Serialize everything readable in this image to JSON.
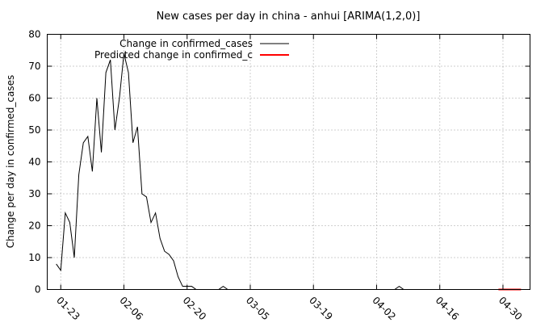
{
  "chart_data": {
    "type": "line",
    "title": "New cases per day in china - anhui [ARIMA(1,2,0)]",
    "xlabel": "",
    "ylabel": "Change per day in confirmed_cases",
    "xlim": [
      "2020-01-20",
      "2020-05-06"
    ],
    "ylim": [
      0,
      80
    ],
    "y_ticks": [
      0,
      10,
      20,
      30,
      40,
      50,
      60,
      70,
      80
    ],
    "x_ticks": [
      {
        "label": "01-23",
        "date": "2020-01-23"
      },
      {
        "label": "02-06",
        "date": "2020-02-06"
      },
      {
        "label": "02-20",
        "date": "2020-02-20"
      },
      {
        "label": "03-05",
        "date": "2020-03-05"
      },
      {
        "label": "03-19",
        "date": "2020-03-19"
      },
      {
        "label": "04-02",
        "date": "2020-04-02"
      },
      {
        "label": "04-16",
        "date": "2020-04-16"
      },
      {
        "label": "04-30",
        "date": "2020-04-30"
      }
    ],
    "grid": true,
    "legend_position": "top-left",
    "series": [
      {
        "name": "Change in confirmed_cases",
        "color": "#000000",
        "x": [
          "2020-01-22",
          "2020-01-23",
          "2020-01-24",
          "2020-01-25",
          "2020-01-26",
          "2020-01-27",
          "2020-01-28",
          "2020-01-29",
          "2020-01-30",
          "2020-01-31",
          "2020-02-01",
          "2020-02-02",
          "2020-02-03",
          "2020-02-04",
          "2020-02-05",
          "2020-02-06",
          "2020-02-07",
          "2020-02-08",
          "2020-02-09",
          "2020-02-10",
          "2020-02-11",
          "2020-02-12",
          "2020-02-13",
          "2020-02-14",
          "2020-02-15",
          "2020-02-16",
          "2020-02-17",
          "2020-02-18",
          "2020-02-19",
          "2020-02-20",
          "2020-02-21",
          "2020-02-22",
          "2020-02-23",
          "2020-02-24",
          "2020-02-25",
          "2020-02-26",
          "2020-02-27",
          "2020-02-28",
          "2020-02-29",
          "2020-03-01",
          "2020-03-02",
          "2020-03-03",
          "2020-03-04",
          "2020-03-05",
          "2020-03-06",
          "2020-03-07",
          "2020-03-08",
          "2020-03-09",
          "2020-03-10",
          "2020-03-11",
          "2020-03-12",
          "2020-03-13",
          "2020-03-14",
          "2020-03-15",
          "2020-03-16",
          "2020-03-17",
          "2020-03-18",
          "2020-03-19",
          "2020-03-20",
          "2020-03-21",
          "2020-03-22",
          "2020-03-23",
          "2020-03-24",
          "2020-03-25",
          "2020-03-26",
          "2020-03-27",
          "2020-03-28",
          "2020-03-29",
          "2020-03-30",
          "2020-03-31",
          "2020-04-01",
          "2020-04-02",
          "2020-04-03",
          "2020-04-04",
          "2020-04-05",
          "2020-04-06",
          "2020-04-07",
          "2020-04-08",
          "2020-04-09",
          "2020-04-10",
          "2020-04-11",
          "2020-04-12",
          "2020-04-13",
          "2020-04-14",
          "2020-04-15",
          "2020-04-16",
          "2020-04-17",
          "2020-04-18",
          "2020-04-19",
          "2020-04-20",
          "2020-04-21",
          "2020-04-22",
          "2020-04-23",
          "2020-04-24",
          "2020-04-25",
          "2020-04-26",
          "2020-04-27",
          "2020-04-28",
          "2020-04-29",
          "2020-04-30",
          "2020-05-01",
          "2020-05-02",
          "2020-05-03",
          "2020-05-04"
        ],
        "y": [
          8,
          6,
          24,
          21,
          10,
          36,
          46,
          48,
          37,
          60,
          43,
          68,
          72,
          50,
          60,
          74,
          68,
          46,
          51,
          30,
          29,
          21,
          24,
          16,
          12,
          11,
          9,
          4,
          1,
          1,
          1,
          0,
          0,
          0,
          0,
          0,
          0,
          1,
          0,
          0,
          0,
          0,
          0,
          0,
          0,
          0,
          0,
          0,
          0,
          0,
          0,
          0,
          0,
          0,
          0,
          0,
          0,
          0,
          0,
          0,
          0,
          0,
          0,
          0,
          0,
          0,
          0,
          0,
          0,
          0,
          0,
          0,
          0,
          0,
          0,
          0,
          1,
          0,
          0,
          0,
          0,
          0,
          0,
          0,
          0,
          0,
          0,
          0,
          0,
          0,
          0,
          0,
          0,
          0,
          0,
          0,
          0,
          0,
          0,
          0,
          0,
          0,
          0,
          0
        ]
      },
      {
        "name": "Predicted change in confirmed_c",
        "color": "#ff0000",
        "x": [
          "2020-04-29",
          "2020-04-30",
          "2020-05-01",
          "2020-05-02",
          "2020-05-03",
          "2020-05-04"
        ],
        "y": [
          0,
          0,
          0,
          0,
          0,
          0
        ]
      }
    ]
  }
}
